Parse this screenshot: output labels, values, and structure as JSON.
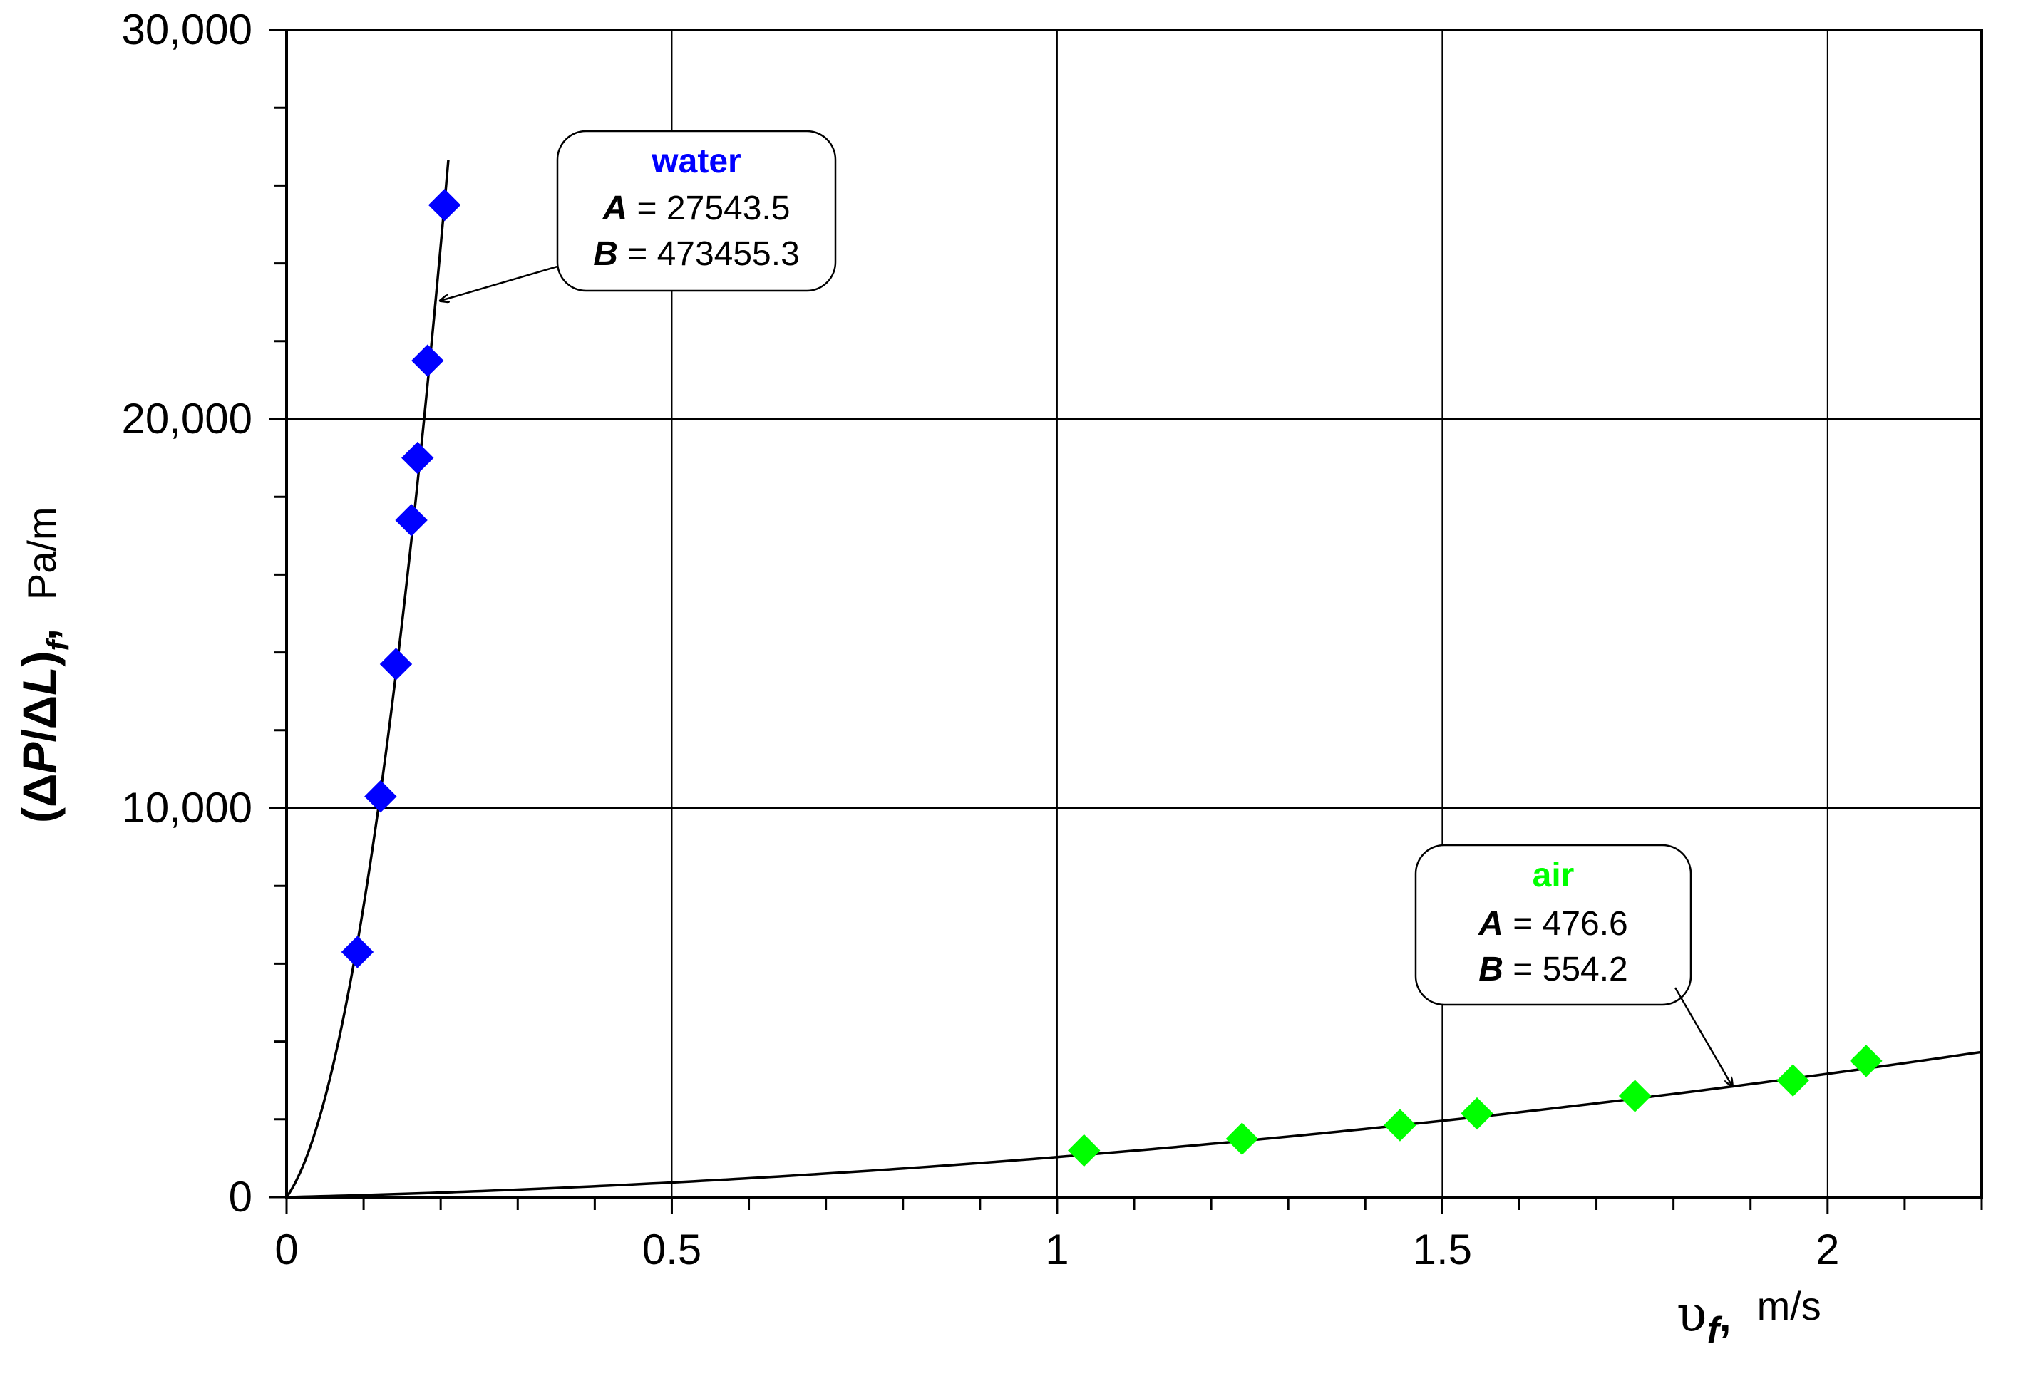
{
  "chart_data": {
    "type": "scatter",
    "xlabel": {
      "symbol": "υ",
      "subscript": "f",
      "sep": ",",
      "unit": "m/s"
    },
    "ylabel": {
      "prefix": "(Δ",
      "p": "P",
      "mid": "/Δ",
      "l": "L",
      "suffix": ")",
      "subscript": "f",
      "sep": ",",
      "unit": "Pa/m"
    },
    "xlim": [
      0,
      2.2
    ],
    "ylim": [
      0,
      30000
    ],
    "x_ticks": [
      0,
      0.5,
      1,
      1.5,
      2
    ],
    "x_tick_labels": [
      "0",
      "0.5",
      "1",
      "1.5",
      "2"
    ],
    "y_ticks": [
      0,
      10000,
      20000,
      30000
    ],
    "y_tick_labels": [
      "0",
      "10,000",
      "20,000",
      "30,000"
    ],
    "grid": true,
    "series": [
      {
        "name": "water",
        "color": "#0000ff",
        "marker": "diamond",
        "x": [
          0.092,
          0.122,
          0.142,
          0.162,
          0.17,
          0.183,
          0.205
        ],
        "y": [
          6300,
          10300,
          13700,
          17400,
          19000,
          21500,
          25500
        ],
        "fit": {
          "A": 27543.5,
          "B": 473455.3,
          "x_max": 0.21
        },
        "annotation": {
          "title": "water",
          "a_label": "A",
          "a_value": " = 27543.5",
          "b_label": "B",
          "b_value": " = 473455.3"
        }
      },
      {
        "name": "air",
        "color": "#00ff00",
        "marker": "diamond",
        "x": [
          1.035,
          1.24,
          1.445,
          1.545,
          1.75,
          1.955,
          2.05
        ],
        "y": [
          1200,
          1500,
          1850,
          2150,
          2600,
          3000,
          3500
        ],
        "fit": {
          "A": 476.6,
          "B": 554.2,
          "x_max": 2.2
        },
        "annotation": {
          "title": "air",
          "a_label": "A",
          "a_value": " = 476.6",
          "b_label": "B",
          "b_value": " = 554.2"
        }
      }
    ]
  }
}
